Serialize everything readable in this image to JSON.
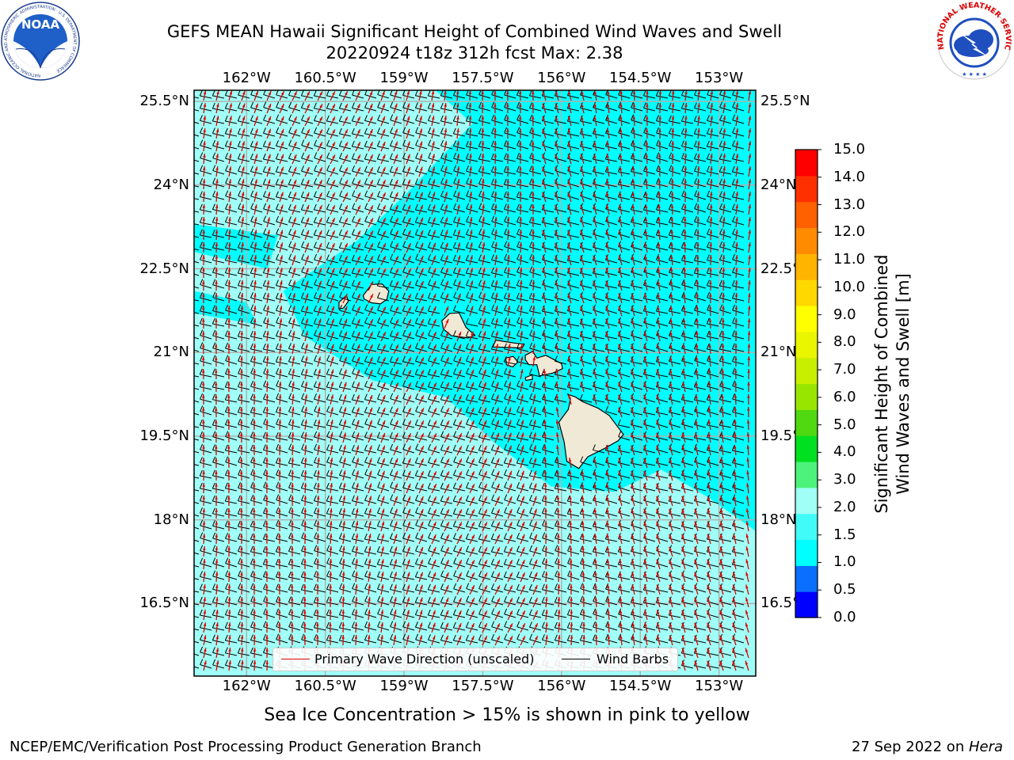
{
  "header": {
    "title_line1": "GEFS MEAN Hawaii Significant Height of Combined Wind Waves and Swell",
    "title_line2": "20220924 t18z 312h fcst   Max: 2.38"
  },
  "logos": {
    "noaa_text": "NOAA",
    "noaa_ring_text": "NATIONAL OCEANIC AND ATMOSPHERIC ADMINISTRATION · U.S. DEPARTMENT OF COMMERCE",
    "nws_ring_text": "NATIONAL WEATHER SERVICE"
  },
  "map": {
    "lon_ticks": [
      "162°W",
      "160.5°W",
      "159°W",
      "157.5°W",
      "156°W",
      "154.5°W",
      "153°W"
    ],
    "lat_ticks": [
      "25.5°N",
      "24°N",
      "22.5°N",
      "21°N",
      "19.5°N",
      "18°N",
      "16.5°N"
    ],
    "lon_range": [
      -163.0,
      -152.3
    ],
    "lat_range": [
      15.2,
      25.7
    ],
    "field": "Significant Height of Combined Wind Waves and Swell",
    "field_max": 2.38,
    "background_class": "2.0-3.0",
    "islands": [
      "Kauai",
      "Niihau",
      "Oahu",
      "Molokai",
      "Lanai",
      "Maui",
      "Kahoolawe",
      "Hawaii"
    ],
    "colors": {
      "ocean_low": "#00ffff",
      "ocean_high": "#a0fff6",
      "land": "#efe9d6",
      "wave_arrow": "#e00000",
      "barb": "#000000",
      "grid": "#b0b0b0"
    }
  },
  "legend": {
    "items": [
      {
        "label": "Primary Wave Direction (unscaled)",
        "color": "#e00000"
      },
      {
        "label": "Wind Barbs",
        "color": "#000000"
      }
    ]
  },
  "colorbar": {
    "title_line1": "Significant Height of Combined",
    "title_line2": "Wind Waves and Swell [m]",
    "labels": [
      "0.0",
      "0.5",
      "1.0",
      "1.5",
      "2.0",
      "3.0",
      "4.0",
      "5.0",
      "6.0",
      "7.0",
      "8.0",
      "9.0",
      "10.0",
      "11.0",
      "12.0",
      "13.0",
      "14.0",
      "15.0"
    ],
    "colors": [
      "#0000ff",
      "#0a6fff",
      "#00ffff",
      "#40fbf8",
      "#a0fff6",
      "#4cf27a",
      "#00e020",
      "#50d810",
      "#98e600",
      "#c8ee00",
      "#eaf500",
      "#ffff00",
      "#ffd800",
      "#ffb400",
      "#ff8c00",
      "#ff6000",
      "#ff3000",
      "#ff0000"
    ]
  },
  "footer": {
    "note": "Sea Ice Concentration > 15% is shown in pink to yellow",
    "credit_left": "NCEP/EMC/Verification Post Processing Product Generation Branch",
    "credit_date": "27 Sep 2022 on ",
    "credit_host": "Hera"
  }
}
